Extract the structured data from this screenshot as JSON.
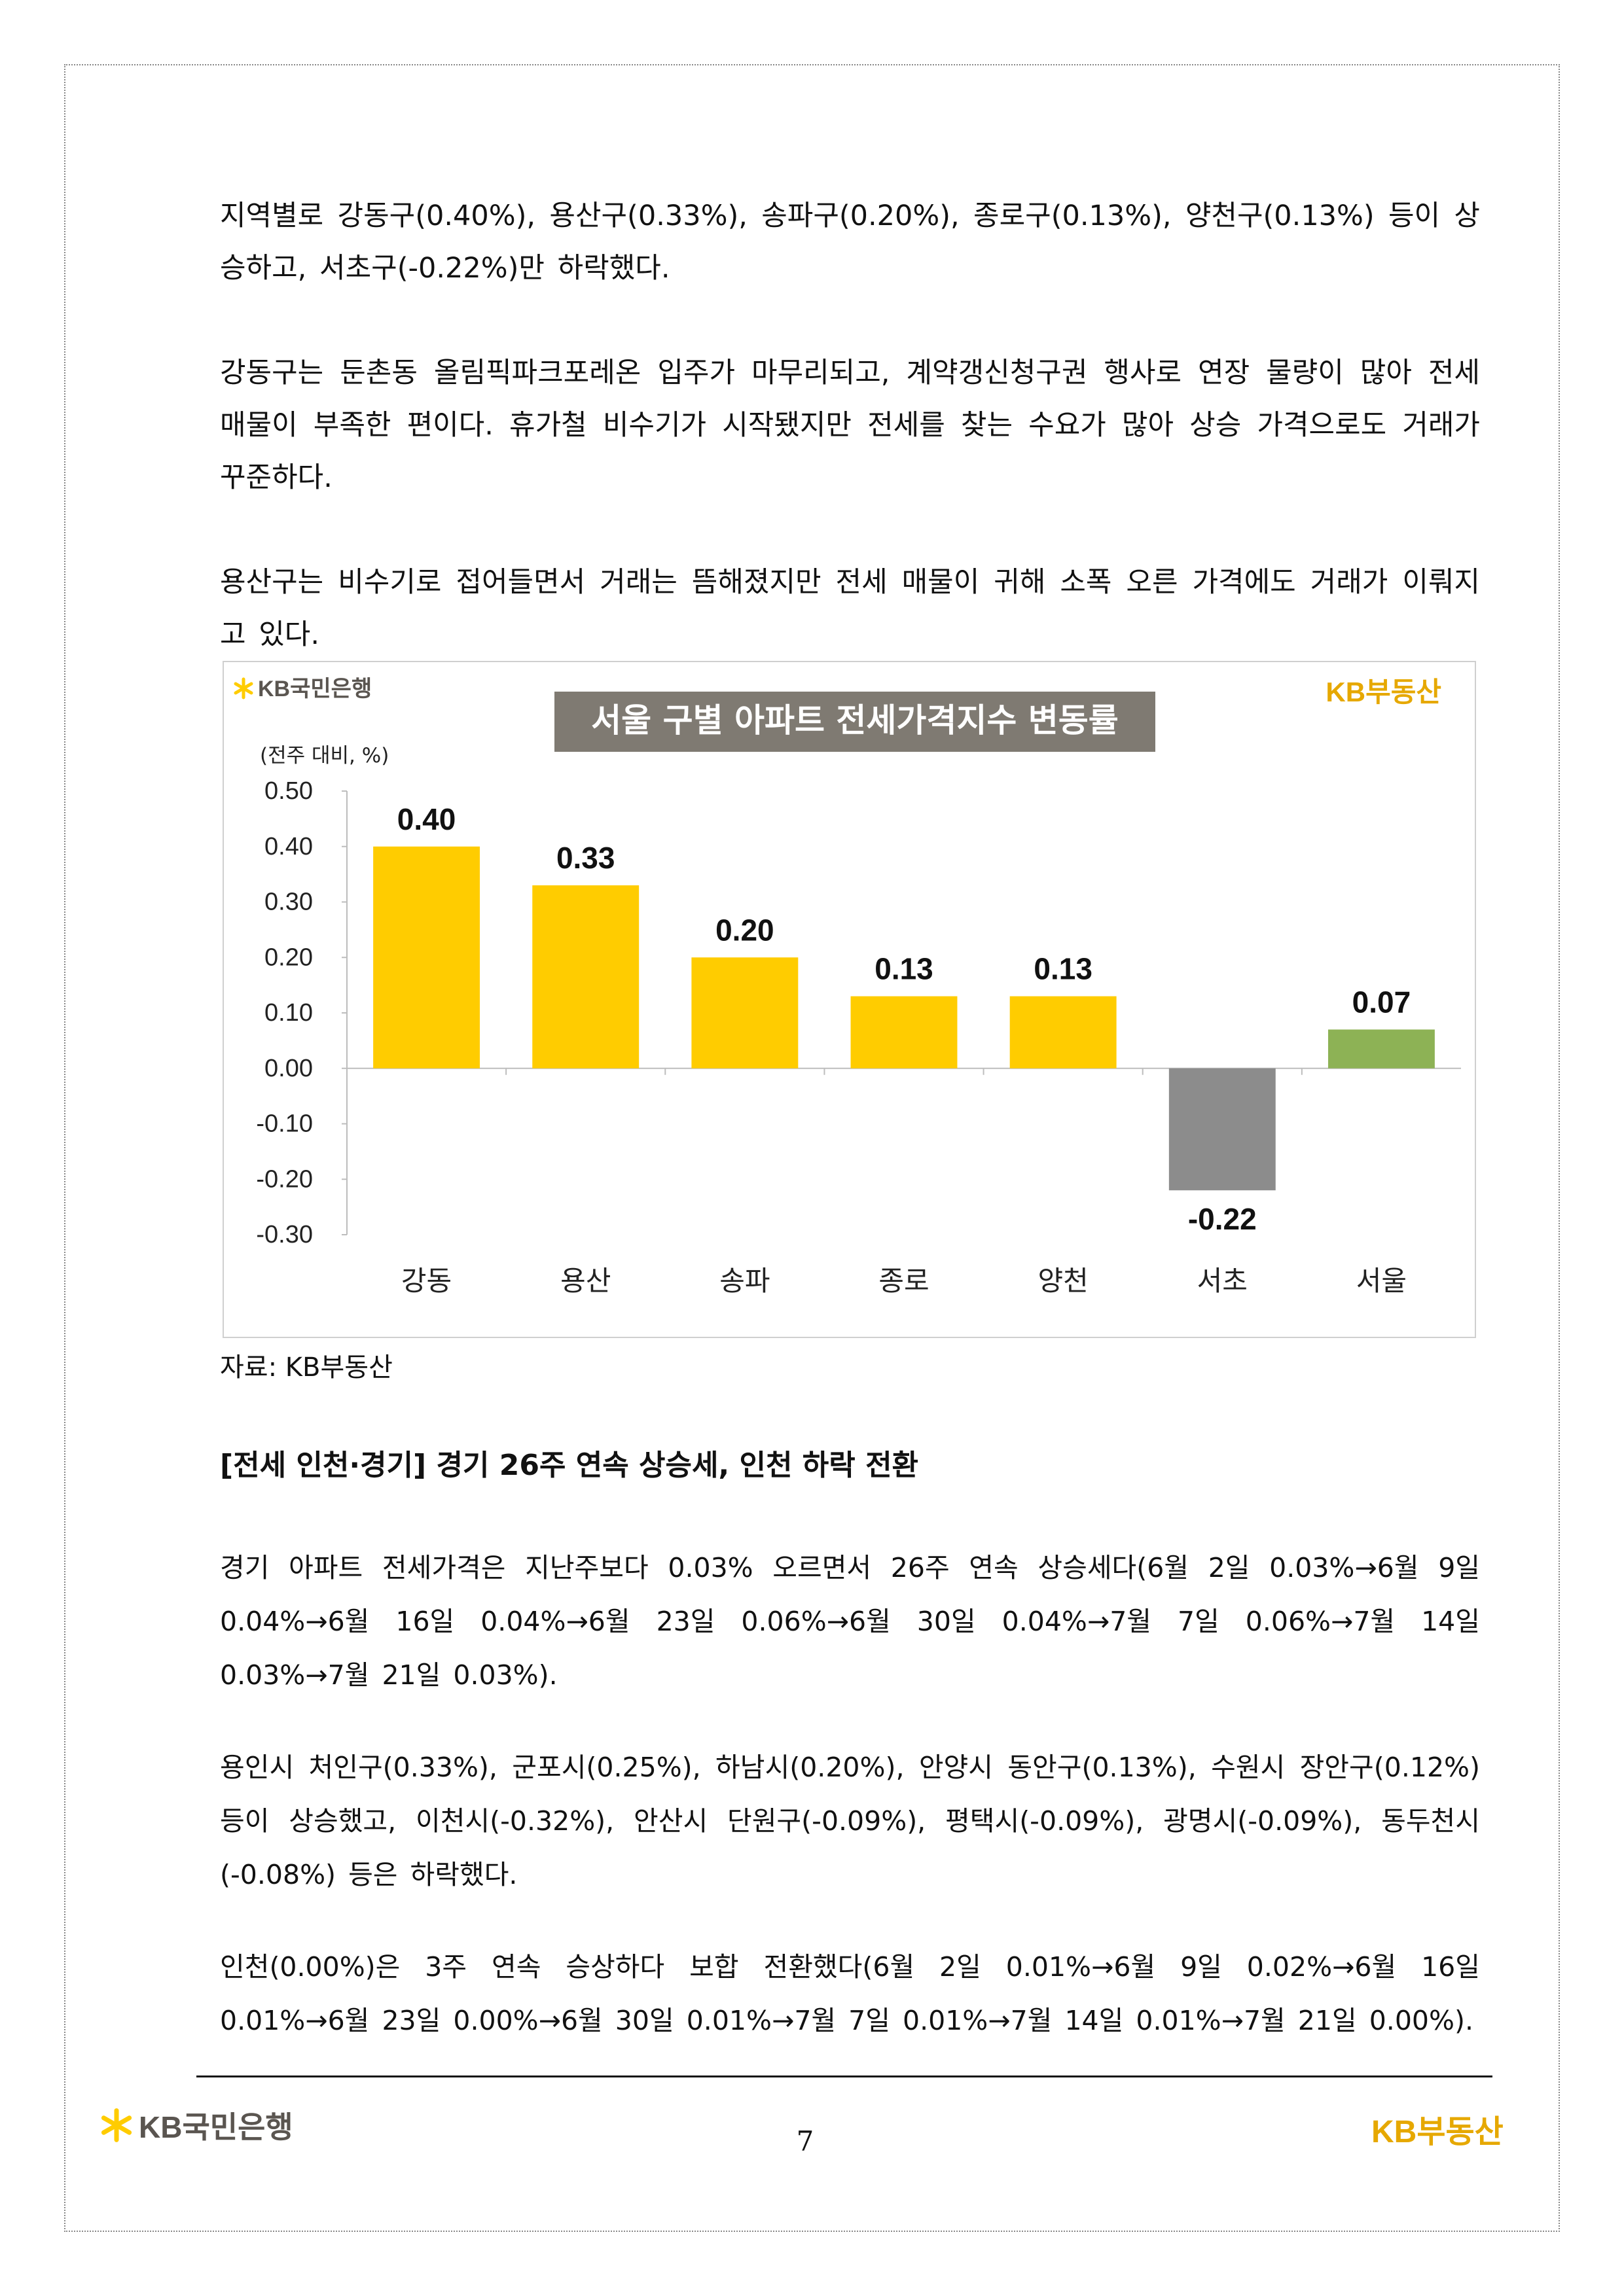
{
  "paragraphs": {
    "p1": "지역별로 강동구(0.40%), 용산구(0.33%), 송파구(0.20%), 종로구(0.13%), 양천구(0.13%) 등이 상승하고, 서초구(-0.22%)만 하락했다.",
    "p2": "강동구는 둔촌동 올림픽파크포레온 입주가 마무리되고, 계약갱신청구권 행사로 연장 물량이 많아 전세 매물이 부족한 편이다. 휴가철 비수기가 시작됐지만 전세를 찾는 수요가 많아 상승 가격으로도 거래가 꾸준하다.",
    "p3": "용산구는 비수기로 접어들면서 거래는 뜸해졌지만 전세 매물이 귀해 소폭 오른 가격에도 거래가 이뤄지고 있다.",
    "p4": "경기 아파트 전세가격은 지난주보다 0.03% 오르면서 26주 연속 상승세다(6월 2일 0.03%→6월 9일 0.04%→6월 16일 0.04%→6월 23일 0.06%→6월 30일 0.04%→7월 7일 0.06%→7월 14일 0.03%→7월 21일 0.03%).",
    "p5": "용인시 처인구(0.33%), 군포시(0.25%), 하남시(0.20%), 안양시 동안구(0.13%), 수원시 장안구(0.12%) 등이 상승했고, 이천시(-0.32%), 안산시 단원구(-0.09%), 평택시(-0.09%), 광명시(-0.09%), 동두천시(-0.08%) 등은 하락했다.",
    "p6": "인천(0.00%)은 3주 연속 승상하다 보합 전환했다(6월 2일 0.01%→6월 9일 0.02%→6월 16일 0.01%→6월 23일 0.00%→6월 30일 0.01%→7월 7일 0.01%→7월 14일 0.01%→7월 21일 0.00%)."
  },
  "section_heading": "[전세 인천·경기] 경기 26주 연속 상승세, 인천 하락 전환",
  "chart_source": "자료: KB부동산",
  "branding": {
    "bank_logo_text": "KB국민은행",
    "realty_logo_text": "KB부동산",
    "accent_color": "#FFCC00",
    "logo_gray": "#5a5550"
  },
  "footer": {
    "page_number": "7"
  },
  "chart_data": {
    "type": "bar",
    "title": "서울 구별 아파트 전세가격지수 변동률",
    "unit_label": "(전주 대비, %)",
    "categories": [
      "강동",
      "용산",
      "송파",
      "종로",
      "양천",
      "서초",
      "서울"
    ],
    "values": [
      0.4,
      0.33,
      0.2,
      0.13,
      0.13,
      -0.22,
      0.07
    ],
    "value_labels": [
      "0.40",
      "0.33",
      "0.20",
      "0.13",
      "0.13",
      "-0.22",
      "0.07"
    ],
    "bar_colors": [
      "#FFCC00",
      "#FFCC00",
      "#FFCC00",
      "#FFCC00",
      "#FFCC00",
      "#8C8C8C",
      "#8DB255"
    ],
    "ylim": [
      -0.3,
      0.5
    ],
    "yticks": [
      "0.50",
      "0.40",
      "0.30",
      "0.20",
      "0.10",
      "0.00",
      "-0.10",
      "-0.20",
      "-0.30"
    ],
    "title_bg": "#7F7A72",
    "grid": false,
    "legend": "none"
  }
}
